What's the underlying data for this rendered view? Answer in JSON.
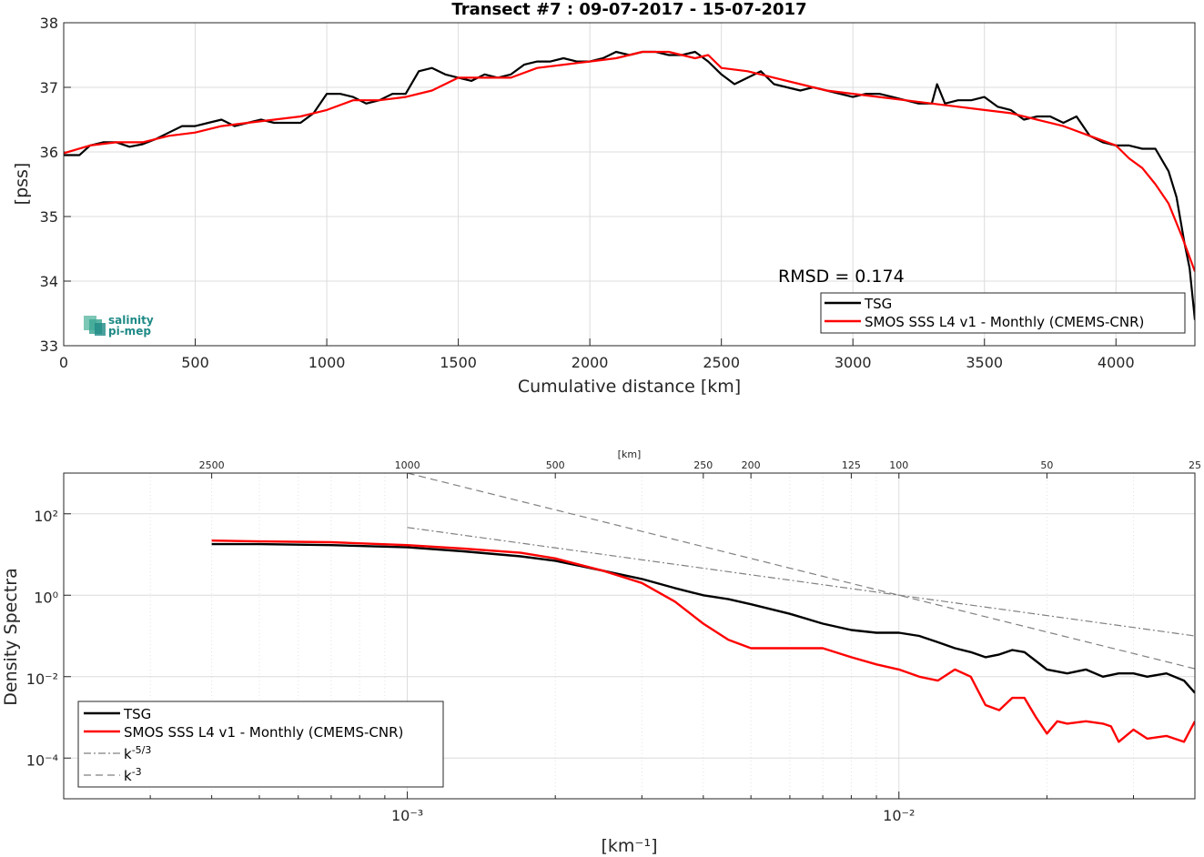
{
  "chart_data": [
    {
      "type": "line",
      "title": "Transect #7 : 09-07-2017 - 15-07-2017",
      "xlabel": "Cumulative distance [km]",
      "ylabel": "[pss]",
      "xlim": [
        0,
        4300
      ],
      "ylim": [
        33,
        38
      ],
      "xticks": [
        "0",
        "500",
        "1000",
        "1500",
        "2000",
        "2500",
        "3000",
        "3500",
        "4000"
      ],
      "yticks": [
        "33",
        "34",
        "35",
        "36",
        "37",
        "38"
      ],
      "grid": true,
      "legend_position": "bottom-right",
      "annotation": "RMSD = 0.174",
      "logo": [
        "salinity",
        "pi-mep"
      ],
      "series": [
        {
          "name": "TSG",
          "color": "#000000",
          "x": [
            0,
            60,
            100,
            150,
            200,
            250,
            300,
            350,
            400,
            450,
            500,
            550,
            600,
            650,
            700,
            750,
            800,
            850,
            900,
            950,
            1000,
            1050,
            1100,
            1150,
            1200,
            1250,
            1300,
            1350,
            1400,
            1450,
            1500,
            1550,
            1600,
            1650,
            1700,
            1750,
            1800,
            1850,
            1900,
            1950,
            2000,
            2050,
            2100,
            2150,
            2200,
            2250,
            2300,
            2350,
            2400,
            2450,
            2500,
            2550,
            2600,
            2650,
            2700,
            2750,
            2800,
            2850,
            2900,
            2950,
            3000,
            3050,
            3100,
            3150,
            3200,
            3250,
            3300,
            3320,
            3350,
            3400,
            3450,
            3500,
            3550,
            3600,
            3650,
            3700,
            3750,
            3800,
            3850,
            3900,
            3950,
            4000,
            4050,
            4100,
            4150,
            4200,
            4230,
            4260,
            4280,
            4300
          ],
          "y": [
            35.95,
            35.95,
            36.1,
            36.15,
            36.15,
            36.08,
            36.12,
            36.2,
            36.3,
            36.4,
            36.4,
            36.45,
            36.5,
            36.4,
            36.45,
            36.5,
            36.45,
            36.45,
            36.45,
            36.6,
            36.9,
            36.9,
            36.85,
            36.75,
            36.8,
            36.9,
            36.9,
            37.25,
            37.3,
            37.2,
            37.15,
            37.1,
            37.2,
            37.15,
            37.2,
            37.35,
            37.4,
            37.4,
            37.45,
            37.4,
            37.4,
            37.45,
            37.55,
            37.5,
            37.55,
            37.55,
            37.5,
            37.5,
            37.55,
            37.4,
            37.2,
            37.05,
            37.15,
            37.25,
            37.05,
            37.0,
            36.95,
            37.0,
            36.95,
            36.9,
            36.85,
            36.9,
            36.9,
            36.85,
            36.8,
            36.75,
            36.75,
            37.05,
            36.75,
            36.8,
            36.8,
            36.85,
            36.7,
            36.65,
            36.5,
            36.55,
            36.55,
            36.45,
            36.55,
            36.25,
            36.15,
            36.1,
            36.1,
            36.05,
            36.05,
            35.7,
            35.3,
            34.6,
            34.2,
            33.4
          ]
        },
        {
          "name": "SMOS SSS L4 v1 - Monthly (CMEMS-CNR)",
          "color": "#ff0000",
          "x": [
            0,
            100,
            200,
            300,
            400,
            500,
            600,
            700,
            800,
            900,
            1000,
            1100,
            1200,
            1300,
            1400,
            1500,
            1600,
            1700,
            1800,
            1900,
            2000,
            2100,
            2200,
            2300,
            2400,
            2450,
            2500,
            2600,
            2700,
            2800,
            2900,
            3000,
            3100,
            3200,
            3300,
            3400,
            3500,
            3600,
            3700,
            3800,
            3900,
            4000,
            4050,
            4100,
            4150,
            4200,
            4250,
            4300
          ],
          "y": [
            35.98,
            36.1,
            36.15,
            36.15,
            36.25,
            36.3,
            36.4,
            36.45,
            36.5,
            36.55,
            36.65,
            36.8,
            36.8,
            36.85,
            36.95,
            37.15,
            37.15,
            37.15,
            37.3,
            37.35,
            37.4,
            37.45,
            37.55,
            37.55,
            37.45,
            37.5,
            37.3,
            37.25,
            37.15,
            37.05,
            36.95,
            36.9,
            36.85,
            36.8,
            36.75,
            36.7,
            36.65,
            36.6,
            36.5,
            36.4,
            36.25,
            36.1,
            35.9,
            35.75,
            35.5,
            35.2,
            34.7,
            34.15
          ]
        }
      ]
    },
    {
      "type": "line",
      "xlabel": "[km⁻¹]",
      "ylabel": "Density Spectra",
      "top_axis_label": "[km]",
      "xscale": "log",
      "yscale": "log",
      "xlim": [
        0.0002,
        0.04
      ],
      "ylim": [
        1e-05,
        1000
      ],
      "xticks": [
        "10⁻³",
        "10⁻²"
      ],
      "yticks": [
        "10²",
        "10⁰",
        "10⁻²",
        "10⁻⁴"
      ],
      "top_ticks": [
        "2500",
        "1000",
        "500",
        "250",
        "200",
        "125",
        "100",
        "50",
        "25"
      ],
      "grid": true,
      "legend_position": "bottom-left",
      "series": [
        {
          "name": "TSG",
          "color": "#000000",
          "x": [
            0.0004,
            0.0005,
            0.0007,
            0.001,
            0.0013,
            0.0017,
            0.002,
            0.0025,
            0.003,
            0.0035,
            0.004,
            0.0045,
            0.005,
            0.006,
            0.007,
            0.008,
            0.009,
            0.01,
            0.011,
            0.012,
            0.013,
            0.014,
            0.015,
            0.016,
            0.017,
            0.018,
            0.02,
            0.022,
            0.024,
            0.026,
            0.028,
            0.03,
            0.032,
            0.035,
            0.038,
            0.04
          ],
          "y": [
            18,
            18,
            17,
            15,
            12,
            9,
            7,
            4,
            2.5,
            1.5,
            1,
            0.8,
            0.6,
            0.35,
            0.2,
            0.14,
            0.12,
            0.12,
            0.1,
            0.07,
            0.05,
            0.04,
            0.03,
            0.035,
            0.045,
            0.04,
            0.015,
            0.012,
            0.015,
            0.01,
            0.012,
            0.012,
            0.01,
            0.012,
            0.008,
            0.004
          ]
        },
        {
          "name": "SMOS SSS L4 v1 - Monthly (CMEMS-CNR)",
          "color": "#ff0000",
          "x": [
            0.0004,
            0.0005,
            0.0007,
            0.001,
            0.0013,
            0.0017,
            0.002,
            0.0025,
            0.003,
            0.0035,
            0.004,
            0.0045,
            0.005,
            0.006,
            0.007,
            0.008,
            0.009,
            0.01,
            0.011,
            0.012,
            0.013,
            0.014,
            0.015,
            0.016,
            0.017,
            0.018,
            0.019,
            0.02,
            0.021,
            0.022,
            0.024,
            0.026,
            0.027,
            0.028,
            0.03,
            0.032,
            0.035,
            0.038,
            0.04
          ],
          "y": [
            22,
            21,
            20,
            17,
            14,
            11,
            8,
            4,
            2,
            0.7,
            0.2,
            0.08,
            0.05,
            0.05,
            0.05,
            0.03,
            0.02,
            0.015,
            0.01,
            0.008,
            0.015,
            0.01,
            0.002,
            0.0015,
            0.003,
            0.003,
            0.001,
            0.0004,
            0.0008,
            0.0007,
            0.0008,
            0.0007,
            0.0006,
            0.00025,
            0.0005,
            0.0003,
            0.00035,
            0.00025,
            0.0008
          ]
        },
        {
          "name": "k-5/3",
          "color": "#808080",
          "style": "dashdot",
          "x": [
            0.001,
            0.04
          ],
          "y": [
            46,
            0.1
          ]
        },
        {
          "name": "k-3",
          "color": "#808080",
          "style": "dashed",
          "x": [
            0.001,
            0.04
          ],
          "y": [
            1000,
            0.0156
          ]
        }
      ]
    }
  ]
}
